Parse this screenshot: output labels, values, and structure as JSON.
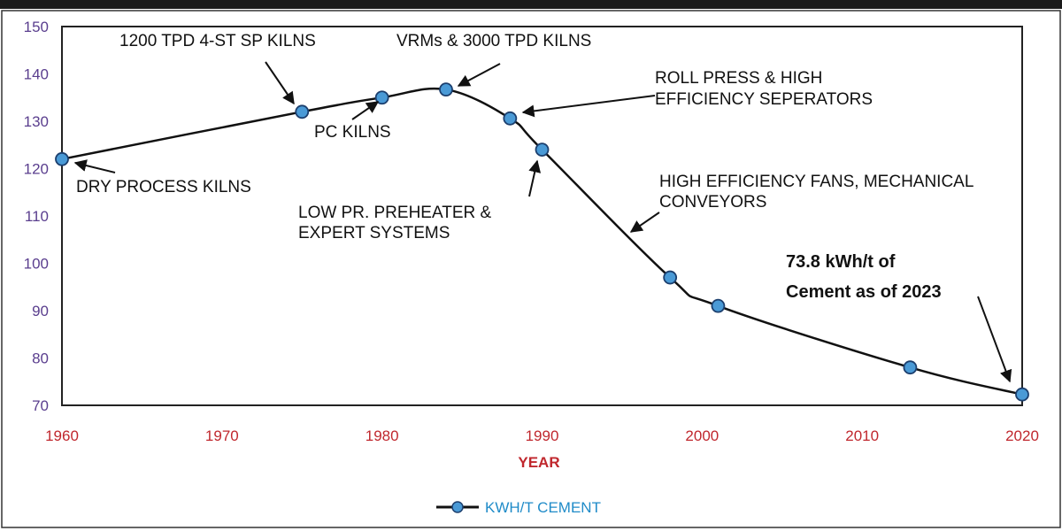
{
  "chart_data": {
    "type": "line",
    "title": "",
    "xlabel": "YEAR",
    "ylabel": "",
    "xlim": [
      1960,
      2020
    ],
    "ylim": [
      70,
      150
    ],
    "x_ticks": [
      "1960",
      "1970",
      "1980",
      "1990",
      "2000",
      "2010",
      "2020"
    ],
    "y_ticks": [
      "70",
      "80",
      "90",
      "100",
      "110",
      "120",
      "130",
      "140",
      "150"
    ],
    "grid": false,
    "legend_position": "bottom",
    "series": [
      {
        "name": "KWH/T CEMENT",
        "x": [
          1960,
          1975,
          1980,
          1984,
          1988,
          1990,
          1998,
          2001,
          2013,
          2020
        ],
        "y": [
          122,
          132,
          135,
          136.7,
          130.6,
          124,
          97,
          91,
          78,
          72.3
        ]
      }
    ],
    "colors": {
      "line": "#111111",
      "marker": "#4a9ad6",
      "marker_edge": "#1c3f6e",
      "y_tick": "#5a3e8e",
      "x_tick": "#c0272d",
      "legend_text": "#1f8bc8"
    },
    "annotations": [
      {
        "text": [
          "DRY PROCESS KILNS"
        ]
      },
      {
        "text": [
          "1200 TPD 4-ST SP KILNS"
        ]
      },
      {
        "text": [
          "PC KILNS"
        ]
      },
      {
        "text": [
          "VRMs & 3000 TPD KILNS"
        ]
      },
      {
        "text": [
          "ROLL PRESS & HIGH",
          "EFFICIENCY SEPERATORS"
        ]
      },
      {
        "text": [
          "LOW PR. PREHEATER &",
          "EXPERT SYSTEMS"
        ]
      },
      {
        "text": [
          "HIGH EFFICIENCY FANS, MECHANICAL",
          "CONVEYORS"
        ]
      },
      {
        "text": [
          "73.8 kWh/t of",
          "Cement as of 2023"
        ],
        "bold": true
      }
    ]
  }
}
